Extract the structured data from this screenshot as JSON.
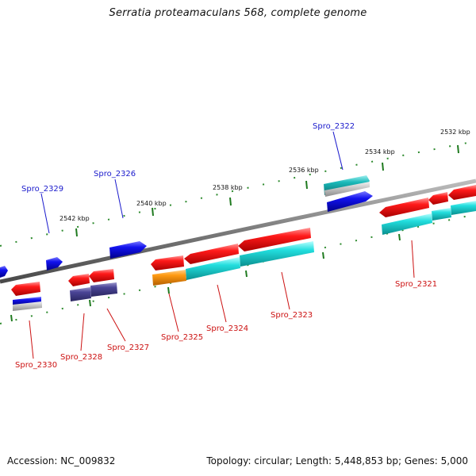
{
  "header": {
    "title": "Serratia proteamaculans 568, complete genome"
  },
  "footer": {
    "accession": "Accession: NC_009832",
    "summary": "Topology: circular; Length: 5,448,853 bp; Genes: 5,000"
  },
  "colors": {
    "backbone": "#8a8a8a",
    "label_forward": "#1a1acc",
    "label_reverse": "#cc1111",
    "ticks": "#1f7a1f"
  },
  "scale_labels": [
    "2542 kbp",
    "2540 kbp",
    "2538 kbp",
    "2536 kbp",
    "2534 kbp",
    "2532 kbp"
  ],
  "gene_labels": {
    "forward": [
      "Spro_2329",
      "Spro_2326",
      "Spro_2322"
    ],
    "reverse": [
      "Spro_2330",
      "Spro_2328",
      "Spro_2327",
      "Spro_2325",
      "Spro_2324",
      "Spro_2323",
      "Spro_2321"
    ]
  }
}
